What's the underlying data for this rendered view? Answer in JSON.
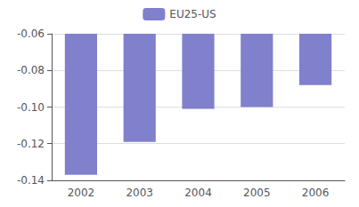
{
  "chart_data": {
    "type": "bar",
    "categories": [
      "2002",
      "2003",
      "2004",
      "2005",
      "2006"
    ],
    "series": [
      {
        "name": "EU25-US",
        "color": "#8080cc",
        "values": [
          -0.137,
          -0.119,
          -0.101,
          -0.1,
          -0.088
        ]
      }
    ],
    "ylim": [
      -0.14,
      -0.06
    ],
    "yticks": [
      -0.14,
      -0.12,
      {
        "value": -0.1,
        "label": "-0.10"
      },
      -0.08,
      -0.06
    ],
    "grid": true,
    "legend": "upper center"
  }
}
